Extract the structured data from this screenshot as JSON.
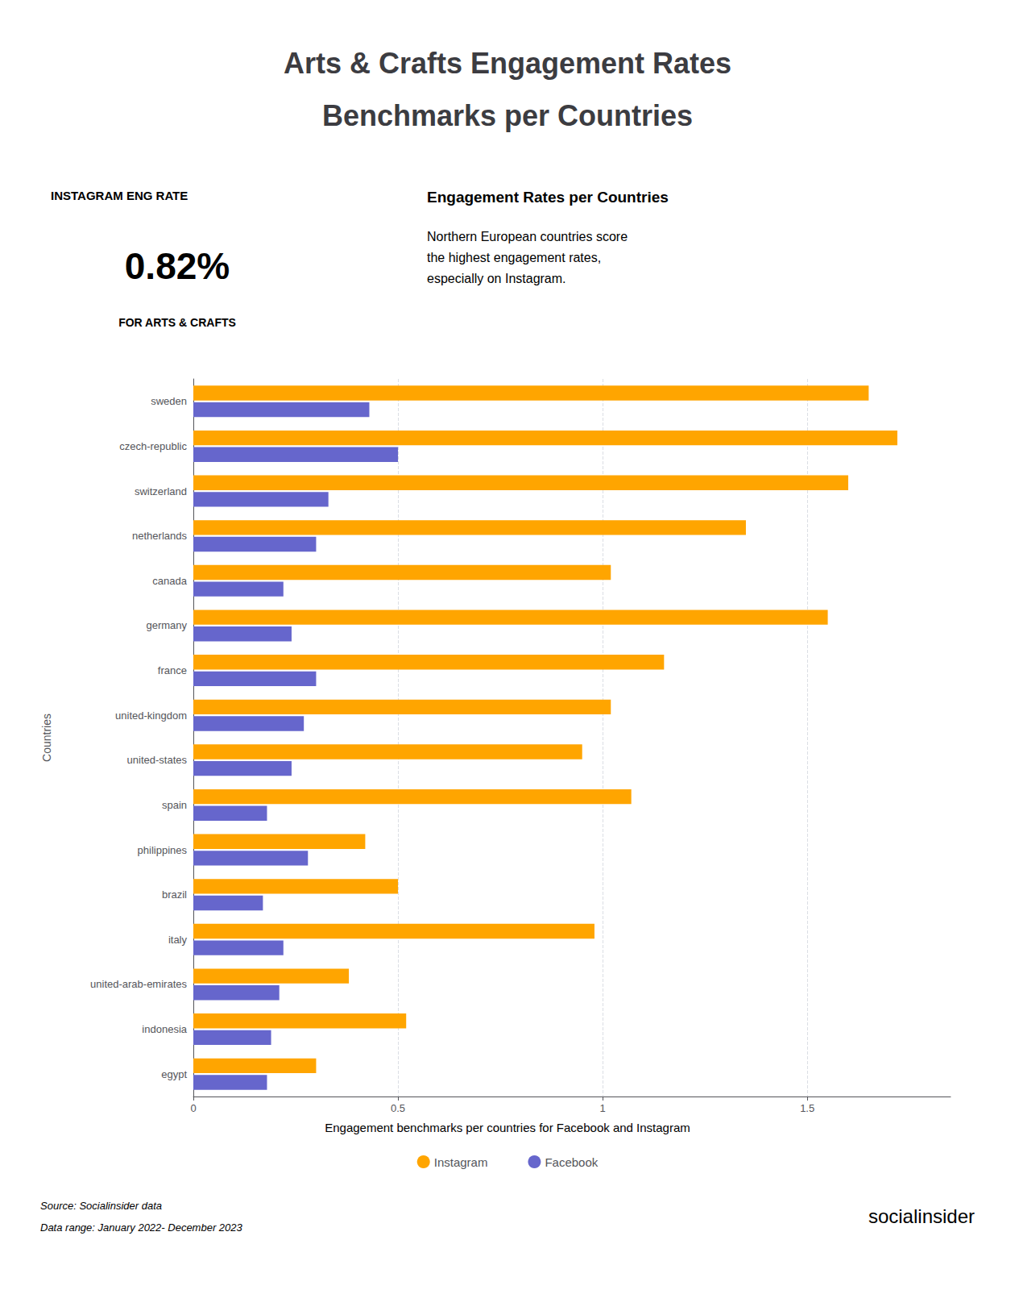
{
  "chart_data": {
    "type": "bar",
    "orientation": "horizontal",
    "title": "Arts & Crafts Engagement Rates",
    "subtitle": "Benchmarks per Countries",
    "annotations": [
      "INSTAGRAM ENG RATE",
      "0.82%",
      "FOR ARTS & CRAFTS",
      "Engagement Rates per Countries",
      "Northern European countries score\nthe highest engagement rates,\nespecially on Instagram.",
      "Engagement benchmarks per countries for Facebook and Instagram",
      "Source: Socialinsider data",
      "Data range: January 2022- December 2023",
      "socialinsider"
    ],
    "ylabel": "Countries",
    "categories": [
      "sweden",
      "czech-republic",
      "switzerland",
      "netherlands",
      "canada",
      "germany",
      "france",
      "united-kingdom",
      "united-states",
      "spain",
      "philippines",
      "brazil",
      "italy",
      "united-arab-emirates",
      "indonesia",
      "egypt"
    ],
    "series": [
      {
        "name": "Instagram",
        "color": "#FFA500",
        "values": [
          1.65,
          1.72,
          1.6,
          1.35,
          1.02,
          1.55,
          1.15,
          1.02,
          0.95,
          1.07,
          0.42,
          0.5,
          0.98,
          0.38,
          0.52,
          0.3
        ]
      },
      {
        "name": "Facebook",
        "color": "#6666cc",
        "values": [
          0.43,
          0.5,
          0.33,
          0.3,
          0.22,
          0.24,
          0.3,
          0.27,
          0.24,
          0.18,
          0.28,
          0.17,
          0.22,
          0.21,
          0.19,
          0.18
        ]
      }
    ],
    "xlim": [
      0,
      1.85
    ],
    "xticks": [
      0,
      0.5,
      1,
      1.5
    ],
    "grid": true,
    "legend": "bottom"
  }
}
